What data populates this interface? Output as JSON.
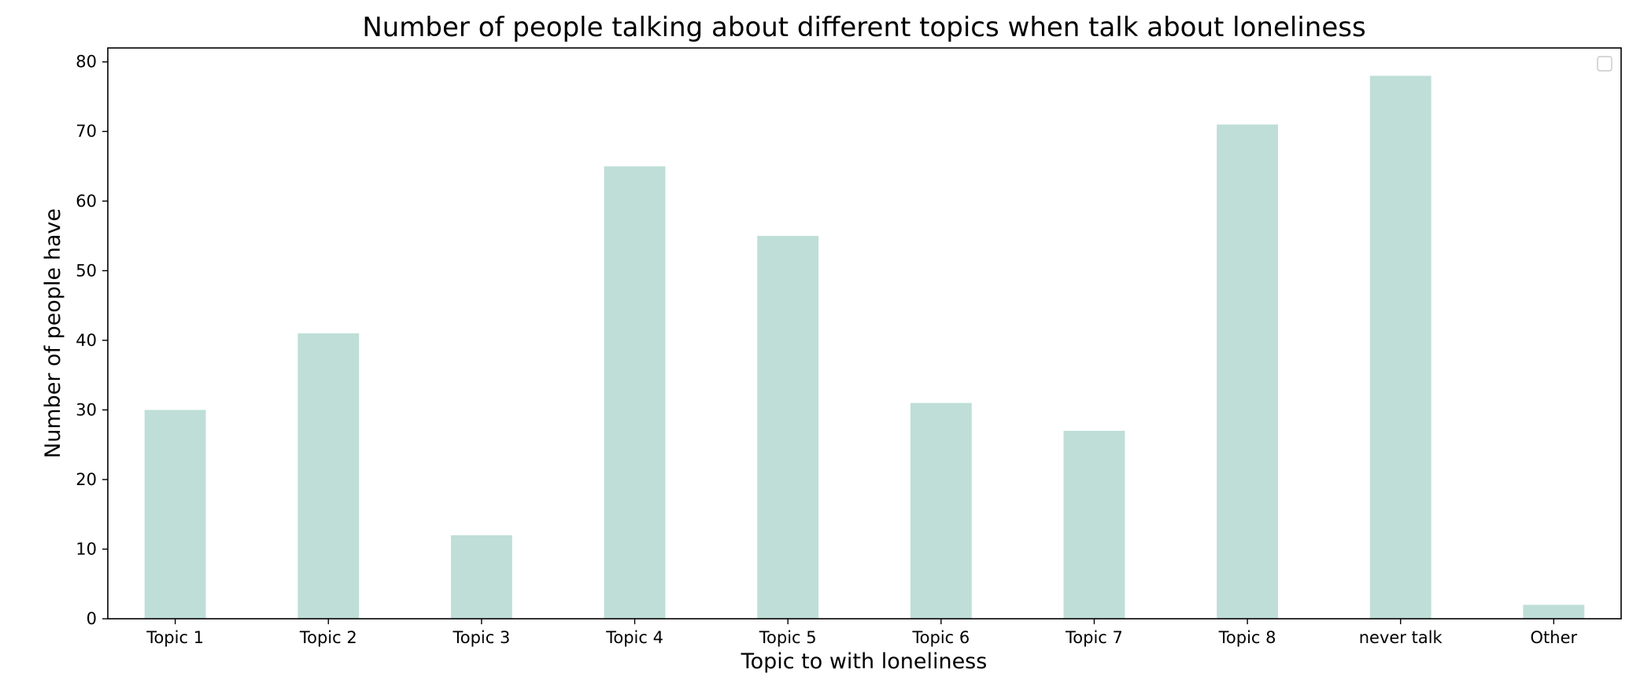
{
  "chart_data": {
    "type": "bar",
    "title": "Number of people talking about different topics when talk about loneliness",
    "xlabel": "Topic to with loneliness",
    "ylabel": "Number of people have",
    "categories": [
      "Topic 1",
      "Topic 2",
      "Topic 3",
      "Topic 4",
      "Topic 5",
      "Topic 6",
      "Topic 7",
      "Topic 8",
      "never talk",
      "Other"
    ],
    "values": [
      30,
      41,
      12,
      65,
      55,
      31,
      27,
      71,
      78,
      2
    ],
    "ylim": [
      0,
      82
    ],
    "yticks": [
      0,
      10,
      20,
      30,
      40,
      50,
      60,
      70,
      80
    ],
    "bar_color": "#bfded8",
    "grid": false,
    "legend": {
      "placement": "top-right",
      "entries": []
    }
  }
}
